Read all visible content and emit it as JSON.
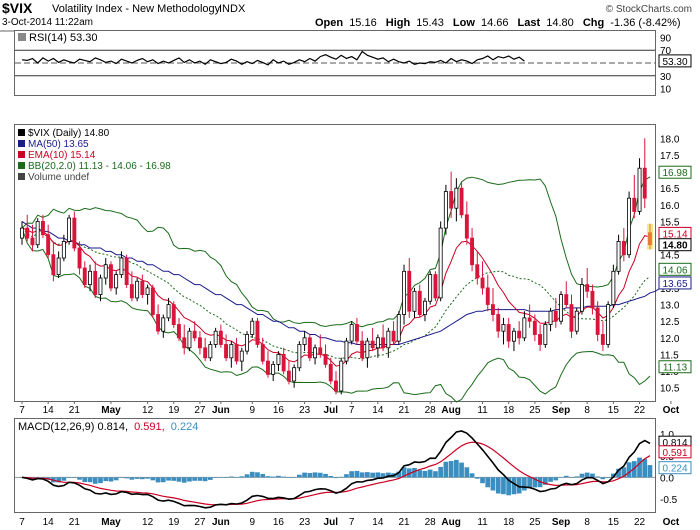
{
  "header": {
    "symbol": "$VIX",
    "name": "Volatility Index - New Methodology",
    "exchange": "INDX",
    "datetime": "3-Oct-2014 11:22am",
    "watermark": "© StockCharts.com",
    "open_label": "Open",
    "open": "15.16",
    "high_label": "High",
    "high": "15.43",
    "low_label": "Low",
    "low": "14.66",
    "last_label": "Last",
    "last": "14.80",
    "chg_label": "Chg",
    "chg": "-1.36 (-8.42%)"
  },
  "rsi_panel": {
    "label": "RSI(14) 53.30",
    "ticks": [
      "90",
      "70",
      "50",
      "30",
      "10"
    ],
    "last_badge": "53.30",
    "last_value": 53.3,
    "ylim": [
      0,
      100
    ],
    "series": [
      55,
      54,
      57,
      50,
      58,
      53,
      57,
      51,
      55,
      52,
      50,
      56,
      54,
      52,
      58,
      55,
      51,
      53,
      49,
      56,
      53,
      50,
      54,
      57,
      52,
      55,
      49,
      53,
      50,
      54,
      58,
      51,
      55,
      50,
      53,
      48,
      55,
      52,
      49,
      51,
      56,
      53,
      48,
      52,
      49,
      54,
      51,
      47,
      55,
      50,
      53,
      48,
      51,
      55,
      52,
      57,
      53,
      60,
      63,
      59,
      56,
      62,
      57,
      60,
      55,
      68,
      62,
      59,
      56,
      58,
      52,
      56,
      52,
      50,
      53,
      48,
      50,
      49,
      52,
      51,
      54,
      50,
      57,
      52,
      55,
      53,
      49,
      55,
      57,
      61,
      55,
      60,
      58,
      61,
      56,
      59,
      53
    ],
    "colors": {
      "line": "#000000",
      "threshold": "#555555"
    }
  },
  "price_panel": {
    "legend": [
      {
        "text": "$VIX (Daily) 14.80",
        "color": "#000000"
      },
      {
        "text": "MA(50) 13.65",
        "color": "#1a1a8c"
      },
      {
        "text": "EMA(10) 15.14",
        "color": "#cc0022"
      },
      {
        "text": "BB(20,2.0) 11.13 - 14.06 - 16.98",
        "color": "#1b6b1b"
      },
      {
        "text": "Volume undef",
        "color": "#444444"
      }
    ],
    "ticks": [
      "18.0",
      "17.5",
      "17.0",
      "16.5",
      "16.0",
      "15.5",
      "15.0",
      "14.5",
      "14.0",
      "13.5",
      "13.0",
      "12.5",
      "12.0",
      "11.5",
      "11.0",
      "10.5"
    ],
    "badges": [
      {
        "text": "16.98",
        "value": 16.98,
        "color": "#1b6b1b",
        "bold": false
      },
      {
        "text": "15.14",
        "value": 15.14,
        "color": "#cc0022",
        "bold": false
      },
      {
        "text": "14.80",
        "value": 14.8,
        "color": "#000000",
        "bold": true
      },
      {
        "text": "14.06",
        "value": 14.06,
        "color": "#1b6b1b",
        "bold": false
      },
      {
        "text": "13.65",
        "value": 13.65,
        "color": "#1a1a8c",
        "bold": false
      },
      {
        "text": "11.13",
        "value": 11.13,
        "color": "#1b6b1b",
        "bold": false
      }
    ]
  },
  "macd_panel": {
    "label_main": "MACD(12,26,9) 0.814,",
    "label_signal": "0.591,",
    "label_hist": "0.224",
    "ticks": [
      "1.0",
      "0.5",
      "0.0",
      "-0.5"
    ],
    "badges": [
      {
        "text": "0.814",
        "value": 0.814,
        "color": "#000000"
      },
      {
        "text": "0.591",
        "value": 0.591,
        "color": "#cc0022"
      },
      {
        "text": "0.224",
        "value": 0.224,
        "color": "#3a8fc0"
      }
    ],
    "ylim": [
      -0.8,
      1.35
    ]
  },
  "x_axis": {
    "labels": [
      {
        "text": "7",
        "i": 0,
        "bold": false
      },
      {
        "text": "14",
        "i": 5,
        "bold": false
      },
      {
        "text": "21",
        "i": 10,
        "bold": false
      },
      {
        "text": "May",
        "i": 17,
        "bold": true
      },
      {
        "text": "12",
        "i": 24,
        "bold": false
      },
      {
        "text": "19",
        "i": 29,
        "bold": false
      },
      {
        "text": "27",
        "i": 34,
        "bold": false
      },
      {
        "text": "Jun",
        "i": 38,
        "bold": true
      },
      {
        "text": "9",
        "i": 44,
        "bold": false
      },
      {
        "text": "16",
        "i": 49,
        "bold": false
      },
      {
        "text": "23",
        "i": 54,
        "bold": false
      },
      {
        "text": "Jul",
        "i": 59,
        "bold": true
      },
      {
        "text": "7",
        "i": 63,
        "bold": false
      },
      {
        "text": "14",
        "i": 68,
        "bold": false
      },
      {
        "text": "21",
        "i": 73,
        "bold": false
      },
      {
        "text": "28",
        "i": 78,
        "bold": false
      },
      {
        "text": "Aug",
        "i": 82,
        "bold": true
      },
      {
        "text": "11",
        "i": 88,
        "bold": false
      },
      {
        "text": "18",
        "i": 93,
        "bold": false
      },
      {
        "text": "25",
        "i": 98,
        "bold": false
      },
      {
        "text": "Sep",
        "i": 103,
        "bold": true
      },
      {
        "text": "8",
        "i": 108,
        "bold": false
      },
      {
        "text": "15",
        "i": 113,
        "bold": false
      },
      {
        "text": "22",
        "i": 118,
        "bold": false
      },
      {
        "text": "Oct",
        "i": 124,
        "bold": true
      }
    ]
  },
  "chart_data": {
    "type": "candlestick",
    "title": "$VIX Volatility Index - New Methodology INDX",
    "ylim": [
      10.1,
      18.4
    ],
    "up_color": "#ffffff",
    "down_color": "#d8153b",
    "candles": [
      [
        15.0,
        15.5,
        14.8,
        15.3
      ],
      [
        15.3,
        15.7,
        14.9,
        15.0
      ],
      [
        15.0,
        15.4,
        14.6,
        14.8
      ],
      [
        14.8,
        15.6,
        14.7,
        15.5
      ],
      [
        15.5,
        15.7,
        15.0,
        15.1
      ],
      [
        15.1,
        15.4,
        14.4,
        14.5
      ],
      [
        14.5,
        14.9,
        13.7,
        13.9
      ],
      [
        13.9,
        14.6,
        13.8,
        14.4
      ],
      [
        14.4,
        15.1,
        14.3,
        14.9
      ],
      [
        14.9,
        15.7,
        14.8,
        15.6
      ],
      [
        15.6,
        15.8,
        14.6,
        14.7
      ],
      [
        14.7,
        14.9,
        13.9,
        14.1
      ],
      [
        14.1,
        14.3,
        13.5,
        13.6
      ],
      [
        13.6,
        14.2,
        13.4,
        14.0
      ],
      [
        14.0,
        14.3,
        13.2,
        13.3
      ],
      [
        13.3,
        13.9,
        13.1,
        13.8
      ],
      [
        13.8,
        14.4,
        13.6,
        14.2
      ],
      [
        14.2,
        14.3,
        13.4,
        13.5
      ],
      [
        13.5,
        14.0,
        13.3,
        13.9
      ],
      [
        13.9,
        14.6,
        13.8,
        14.4
      ],
      [
        14.4,
        14.5,
        13.5,
        13.6
      ],
      [
        13.6,
        14.0,
        13.1,
        13.2
      ],
      [
        13.2,
        13.8,
        13.1,
        13.7
      ],
      [
        13.7,
        13.9,
        13.2,
        13.3
      ],
      [
        13.3,
        13.6,
        13.0,
        13.5
      ],
      [
        13.5,
        13.6,
        12.6,
        12.7
      ],
      [
        12.7,
        13.0,
        12.1,
        12.2
      ],
      [
        12.2,
        12.7,
        12.0,
        12.6
      ],
      [
        12.6,
        13.2,
        12.5,
        13.0
      ],
      [
        13.0,
        13.1,
        12.3,
        12.4
      ],
      [
        12.4,
        12.6,
        11.9,
        12.0
      ],
      [
        12.0,
        12.4,
        11.5,
        11.7
      ],
      [
        11.7,
        12.3,
        11.6,
        12.2
      ],
      [
        12.2,
        12.5,
        11.9,
        12.0
      ],
      [
        12.0,
        12.2,
        11.5,
        11.7
      ],
      [
        11.7,
        12.0,
        11.3,
        11.4
      ],
      [
        11.4,
        11.9,
        11.3,
        11.8
      ],
      [
        11.8,
        12.3,
        11.7,
        12.2
      ],
      [
        12.2,
        12.4,
        11.7,
        11.8
      ],
      [
        11.8,
        12.1,
        11.3,
        11.4
      ],
      [
        11.4,
        11.9,
        11.1,
        11.8
      ],
      [
        11.8,
        12.0,
        11.2,
        11.3
      ],
      [
        11.3,
        11.7,
        11.0,
        11.6
      ],
      [
        11.6,
        12.2,
        11.5,
        12.1
      ],
      [
        12.1,
        12.6,
        12.0,
        12.5
      ],
      [
        12.5,
        12.6,
        11.7,
        11.8
      ],
      [
        11.8,
        12.0,
        11.2,
        11.3
      ],
      [
        11.3,
        11.6,
        10.8,
        10.9
      ],
      [
        10.9,
        11.3,
        10.7,
        11.2
      ],
      [
        11.2,
        11.6,
        11.0,
        11.5
      ],
      [
        11.5,
        11.7,
        10.9,
        11.0
      ],
      [
        11.0,
        11.3,
        10.6,
        10.7
      ],
      [
        10.7,
        11.2,
        10.5,
        11.1
      ],
      [
        11.1,
        11.9,
        11.0,
        11.8
      ],
      [
        11.8,
        12.2,
        11.6,
        12.0
      ],
      [
        12.0,
        12.1,
        11.3,
        11.4
      ],
      [
        11.4,
        11.8,
        11.2,
        11.7
      ],
      [
        11.7,
        12.1,
        11.4,
        11.5
      ],
      [
        11.5,
        11.8,
        11.1,
        11.2
      ],
      [
        11.2,
        11.4,
        10.6,
        10.7
      ],
      [
        10.7,
        11.0,
        10.3,
        10.4
      ],
      [
        10.4,
        11.4,
        10.3,
        11.3
      ],
      [
        11.3,
        12.0,
        11.2,
        11.9
      ],
      [
        11.9,
        12.5,
        11.8,
        12.4
      ],
      [
        12.4,
        12.6,
        11.8,
        11.9
      ],
      [
        11.9,
        12.2,
        11.3,
        11.4
      ],
      [
        11.4,
        12.0,
        11.1,
        11.9
      ],
      [
        11.9,
        12.3,
        11.6,
        11.7
      ],
      [
        11.7,
        12.1,
        11.4,
        12.0
      ],
      [
        12.0,
        12.4,
        11.6,
        11.7
      ],
      [
        11.7,
        12.3,
        11.4,
        12.2
      ],
      [
        12.2,
        12.5,
        11.8,
        11.9
      ],
      [
        11.9,
        12.8,
        11.8,
        12.7
      ],
      [
        12.7,
        14.2,
        12.4,
        14.0
      ],
      [
        14.0,
        14.4,
        12.6,
        12.8
      ],
      [
        12.8,
        13.5,
        12.6,
        13.4
      ],
      [
        13.4,
        13.6,
        12.6,
        12.7
      ],
      [
        12.7,
        13.2,
        12.5,
        13.1
      ],
      [
        13.1,
        14.0,
        13.0,
        13.9
      ],
      [
        13.9,
        14.0,
        13.1,
        13.2
      ],
      [
        13.2,
        15.5,
        13.1,
        15.3
      ],
      [
        15.3,
        16.6,
        15.1,
        16.4
      ],
      [
        16.4,
        17.0,
        15.6,
        15.9
      ],
      [
        15.9,
        16.8,
        15.5,
        16.5
      ],
      [
        16.5,
        16.7,
        15.6,
        15.7
      ],
      [
        15.7,
        16.1,
        14.8,
        15.0
      ],
      [
        15.0,
        15.3,
        14.0,
        14.2
      ],
      [
        14.2,
        14.6,
        13.6,
        13.8
      ],
      [
        13.8,
        14.3,
        13.3,
        13.5
      ],
      [
        13.5,
        13.9,
        12.8,
        13.0
      ],
      [
        13.0,
        13.5,
        12.5,
        12.7
      ],
      [
        12.7,
        12.9,
        12.0,
        12.2
      ],
      [
        12.2,
        12.6,
        11.8,
        12.4
      ],
      [
        12.4,
        12.6,
        11.7,
        11.9
      ],
      [
        11.9,
        12.3,
        11.6,
        12.2
      ],
      [
        12.2,
        12.5,
        11.8,
        12.0
      ],
      [
        12.0,
        12.8,
        11.9,
        12.6
      ],
      [
        12.6,
        13.0,
        12.3,
        12.5
      ],
      [
        12.5,
        12.7,
        11.9,
        12.1
      ],
      [
        12.1,
        12.4,
        11.6,
        11.8
      ],
      [
        11.8,
        12.5,
        11.7,
        12.4
      ],
      [
        12.4,
        12.9,
        12.2,
        12.8
      ],
      [
        12.8,
        13.2,
        12.3,
        12.5
      ],
      [
        12.5,
        13.4,
        12.4,
        13.3
      ],
      [
        13.3,
        13.7,
        12.9,
        13.0
      ],
      [
        13.0,
        13.3,
        12.0,
        12.2
      ],
      [
        12.2,
        12.9,
        12.1,
        12.8
      ],
      [
        12.8,
        13.8,
        12.7,
        13.6
      ],
      [
        13.6,
        14.1,
        13.2,
        13.4
      ],
      [
        13.4,
        13.6,
        12.7,
        12.9
      ],
      [
        12.9,
        13.1,
        11.9,
        12.1
      ],
      [
        12.1,
        12.5,
        11.6,
        11.8
      ],
      [
        11.8,
        13.1,
        11.7,
        13.0
      ],
      [
        13.0,
        14.2,
        12.9,
        14.0
      ],
      [
        14.0,
        15.1,
        13.9,
        14.9
      ],
      [
        14.9,
        15.3,
        14.3,
        14.5
      ],
      [
        14.5,
        16.4,
        14.4,
        16.2
      ],
      [
        16.2,
        16.9,
        15.6,
        15.8
      ],
      [
        15.8,
        17.4,
        15.7,
        17.1
      ],
      [
        17.1,
        18.0,
        15.9,
        16.2
      ],
      [
        15.16,
        15.43,
        14.66,
        14.8
      ]
    ],
    "ma50": [
      15.5,
      15.4,
      15.3,
      15.3,
      15.2,
      15.2,
      15.1,
      15.0,
      15.0,
      14.9,
      14.9,
      14.8,
      14.8,
      14.7,
      14.7,
      14.7,
      14.6,
      14.6,
      14.5,
      14.5,
      14.4,
      14.4,
      14.3,
      14.3,
      14.2,
      14.2,
      14.1,
      14.0,
      14.0,
      13.9,
      13.9,
      13.8,
      13.7,
      13.6,
      13.6,
      13.5,
      13.4,
      13.3,
      13.3,
      13.2,
      13.1,
      13.0,
      13.0,
      12.9,
      12.8,
      12.7,
      12.7,
      12.6,
      12.5,
      12.5,
      12.4,
      12.3,
      12.3,
      12.2,
      12.2,
      12.1,
      12.1,
      12.0,
      12.0,
      11.95,
      11.9,
      11.9,
      11.85,
      11.85,
      11.8,
      11.8,
      11.8,
      11.8,
      11.8,
      11.8,
      11.8,
      11.8,
      11.8,
      11.85,
      11.9,
      11.95,
      12.0,
      12.05,
      12.1,
      12.15,
      12.2,
      12.3,
      12.4,
      12.5,
      12.6,
      12.7,
      12.75,
      12.8,
      12.8,
      12.85,
      12.85,
      12.85,
      12.85,
      12.85,
      12.85,
      12.85,
      12.85,
      12.8,
      12.8,
      12.8,
      12.8,
      12.8,
      12.85,
      12.85,
      12.9,
      12.9,
      12.9,
      12.9,
      12.95,
      12.95,
      12.95,
      12.95,
      12.95,
      13.0,
      13.0,
      13.05,
      13.1,
      13.15,
      13.2,
      13.25,
      13.35,
      13.4,
      13.5,
      13.55,
      13.6,
      13.65
    ]
  }
}
